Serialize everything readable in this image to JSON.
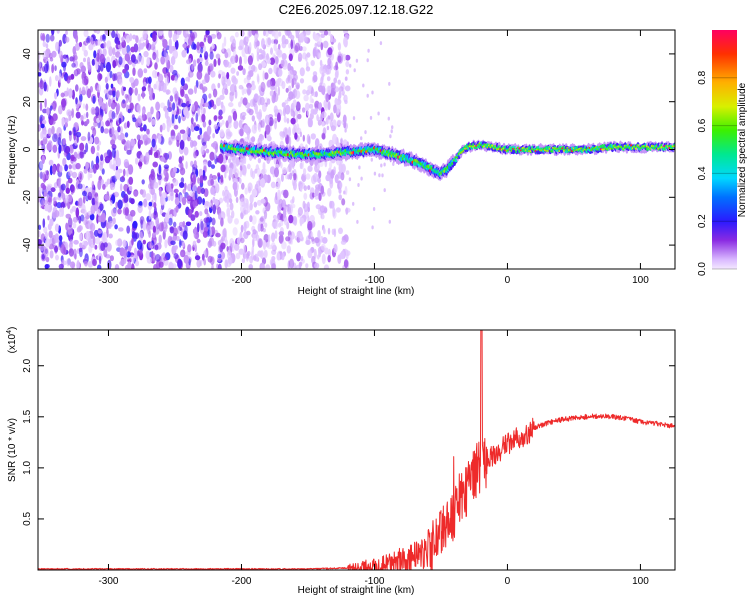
{
  "title": "C2E6.2025.097.12.18.G22",
  "chart_data": [
    {
      "type": "heatmap",
      "ylabel": "Frequency (Hz)",
      "xlabel": "Height of straight line (km)",
      "xlim": [
        -353,
        126
      ],
      "ylim": [
        -50,
        50
      ],
      "xticks": [
        -300,
        -200,
        -100,
        0,
        100
      ],
      "yticks": [
        -40,
        -20,
        0,
        20,
        40
      ],
      "colorbar": {
        "label": "Normalized spectral amplitude",
        "range": [
          0,
          1
        ],
        "ticks": [
          "0.0",
          "0.2",
          "0.4",
          "0.6",
          "0.8"
        ],
        "tick_values": [
          0.0,
          0.2,
          0.4,
          0.6,
          0.8
        ]
      },
      "signal_track": {
        "x": [
          -215,
          -200,
          -180,
          -160,
          -140,
          -120,
          -100,
          -80,
          -65,
          -55,
          -50,
          -45,
          -40,
          -35,
          -30,
          -20,
          -10,
          0,
          20,
          40,
          60,
          80,
          100,
          126
        ],
        "frequency": [
          1,
          0,
          -1,
          -2,
          -2,
          -1,
          0,
          -3,
          -6,
          -9,
          -10,
          -8,
          -5,
          -1,
          1,
          2,
          1,
          0,
          0,
          0,
          0,
          1,
          1,
          1
        ]
      }
    },
    {
      "type": "line",
      "ylabel": "SNR (10 * v/v)",
      "multiplier": "(x10",
      "multiplier_exp": "4",
      "xlabel": "Height of straight line (km)",
      "xlim": [
        -353,
        126
      ],
      "ylim": [
        0,
        2.35
      ],
      "xticks": [
        -300,
        -200,
        -100,
        0,
        100
      ],
      "yticks": [
        "0.5",
        "1.0",
        "1.5",
        "2.0"
      ],
      "ytick_values": [
        0.5,
        1.0,
        1.5,
        2.0
      ],
      "series": [
        {
          "color": "#ee2a2a",
          "x": [
            -353,
            -300,
            -250,
            -200,
            -150,
            -120,
            -100,
            -90,
            -80,
            -70,
            -60,
            -55,
            -50,
            -45,
            -40,
            -35,
            -30,
            -25,
            -22,
            -20,
            -15,
            -10,
            0,
            10,
            20,
            30,
            40,
            50,
            60,
            70,
            80,
            90,
            100,
            110,
            120,
            126
          ],
          "y": [
            0.01,
            0.01,
            0.01,
            0.01,
            0.01,
            0.02,
            0.03,
            0.06,
            0.1,
            0.14,
            0.17,
            0.22,
            0.32,
            0.45,
            0.58,
            0.72,
            0.82,
            0.93,
            0.98,
            1.02,
            1.07,
            1.13,
            1.22,
            1.3,
            1.39,
            1.44,
            1.47,
            1.49,
            1.5,
            1.51,
            1.5,
            1.48,
            1.45,
            1.44,
            1.42,
            1.4
          ]
        }
      ]
    }
  ]
}
